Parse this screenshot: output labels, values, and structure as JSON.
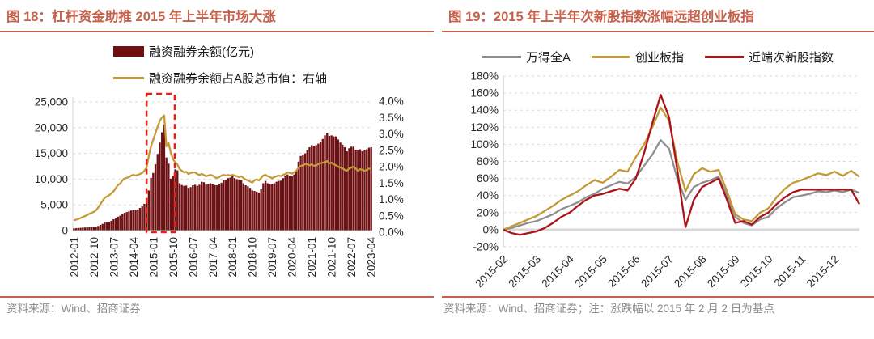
{
  "colors": {
    "accent_title_and_rules": "#C5604A",
    "bar_maroon": "#6E0F12",
    "gold_line": "#C39A37",
    "gray_line": "#8F8F8F",
    "red_line": "#AC1318",
    "highlight_box_red": "#EB1C14",
    "caption_gray": "#8C8C8C",
    "axis_text": "#262626",
    "gridline": "#D9D9D9"
  },
  "figures": [
    {
      "title": "图 18：杠杆资金助推 2015 年上半年市场大涨",
      "source": "资料来源：Wind、招商证券",
      "legend": [
        {
          "label": "融资融券余额(亿元)",
          "color": "#6E0F12",
          "type": "bar"
        },
        {
          "label": "融资融券余额占A股总市值：右轴",
          "color": "#C39A37",
          "type": "line"
        }
      ],
      "chart_data": {
        "type": "bar",
        "subtype": "combo-bar-line-dual-axis",
        "x_start": "2012-01",
        "x_freq": "monthly",
        "x_tick_every_months": 9,
        "x_tick_labels": [
          "2012-01",
          "2012-10",
          "2013-07",
          "2014-04",
          "2015-01",
          "2015-10",
          "2016-07",
          "2017-04",
          "2018-01",
          "2018-10",
          "2019-07",
          "2020-04",
          "2021-01",
          "2021-10",
          "2022-07",
          "2023-04"
        ],
        "left_axis": {
          "min": 0,
          "max": 25000,
          "tick_labels": [
            "25,000",
            "20,000",
            "15,000",
            "10,000",
            "5,000",
            "0"
          ]
        },
        "right_axis": {
          "min": 0,
          "max": 4.0,
          "tick_labels": [
            "4.0%",
            "3.5%",
            "3.0%",
            "2.5%",
            "2.0%",
            "1.5%",
            "1.0%",
            "0.5%",
            "0.0%"
          ]
        },
        "bar_series": {
          "name": "融资融券余额(亿元)",
          "axis": "left",
          "values": [
            420,
            460,
            500,
            540,
            570,
            590,
            610,
            640,
            670,
            700,
            750,
            890,
            1100,
            1300,
            1550,
            1610,
            1700,
            1900,
            2200,
            2400,
            2700,
            2900,
            3200,
            3450,
            3600,
            3750,
            3900,
            3980,
            4000,
            4100,
            4400,
            4700,
            5200,
            5900,
            7800,
            10250,
            11200,
            12900,
            14900,
            17100,
            19100,
            20600,
            14200,
            13000,
            10100,
            10700,
            11900,
            11700,
            9200,
            8850,
            8700,
            8750,
            8300,
            8450,
            8800,
            8900,
            8700,
            8900,
            9500,
            9400,
            8950,
            9000,
            9200,
            9100,
            8850,
            8800,
            9000,
            9300,
            9800,
            9900,
            10200,
            10300,
            10600,
            10200,
            10000,
            9850,
            9800,
            9200,
            8800,
            8600,
            8300,
            7800,
            7700,
            7550,
            7400,
            8050,
            9200,
            9650,
            9200,
            9100,
            9100,
            9200,
            9500,
            9650,
            9700,
            10200,
            10700,
            10900,
            10650,
            10600,
            10900,
            11600,
            13400,
            14500,
            14700,
            15000,
            15600,
            16200,
            16600,
            16500,
            16600,
            16900,
            17300,
            17800,
            18500,
            19000,
            18400,
            18500,
            18300,
            18300,
            17700,
            17100,
            16700,
            16200,
            15400,
            16000,
            16300,
            16300,
            15700,
            15600,
            15800,
            15400,
            15600,
            15800,
            16100,
            16200
          ]
        },
        "line_series": {
          "name": "融资融券余额占A股总市值",
          "axis": "right",
          "unit": "%",
          "values": [
            0.32,
            0.34,
            0.36,
            0.39,
            0.42,
            0.45,
            0.48,
            0.52,
            0.55,
            0.58,
            0.63,
            0.72,
            0.82,
            0.92,
            1.02,
            1.06,
            1.1,
            1.16,
            1.22,
            1.32,
            1.42,
            1.46,
            1.56,
            1.62,
            1.64,
            1.66,
            1.71,
            1.73,
            1.71,
            1.73,
            1.76,
            1.79,
            1.86,
            1.96,
            2.32,
            2.62,
            2.82,
            3.02,
            3.22,
            3.42,
            3.52,
            3.58,
            2.62,
            2.72,
            2.42,
            2.22,
            2.12,
            2.06,
            1.92,
            1.86,
            1.81,
            1.83,
            1.76,
            1.79,
            1.81,
            1.81,
            1.76,
            1.73,
            1.76,
            1.73,
            1.69,
            1.71,
            1.73,
            1.71,
            1.66,
            1.63,
            1.66,
            1.71,
            1.73,
            1.71,
            1.73,
            1.71,
            1.73,
            1.71,
            1.69,
            1.66,
            1.69,
            1.63,
            1.59,
            1.56,
            1.53,
            1.49,
            1.56,
            1.59,
            1.56,
            1.63,
            1.71,
            1.73,
            1.69,
            1.66,
            1.63,
            1.66,
            1.69,
            1.71,
            1.69,
            1.73,
            1.76,
            1.81,
            1.79,
            1.77,
            1.81,
            1.86,
            1.96,
            2.01,
            2.03,
            2.06,
            2.06,
            2.03,
            2.06,
            2.01,
            2.03,
            2.06,
            2.09,
            2.11,
            2.13,
            2.16,
            2.09,
            2.11,
            2.06,
            2.03,
            1.99,
            1.96,
            1.93,
            1.89,
            1.86,
            1.93,
            1.96,
            1.99,
            1.93,
            1.86,
            1.91,
            1.89,
            1.86,
            1.89,
            1.93,
            1.91
          ]
        },
        "highlight_box": {
          "style": "red-dashed",
          "from_month_index": 33.5,
          "to_month_index": 46.3
        }
      }
    },
    {
      "title": "图 19：2015 年上半年次新股指数涨幅远超创业板指",
      "source": "资料来源：Wind、招商证券；注：涨跌幅以 2015 年 2 月 2 日为基点",
      "legend": [
        {
          "label": "万得全A",
          "color": "#8F8F8F",
          "type": "line"
        },
        {
          "label": "创业板指",
          "color": "#C39A37",
          "type": "line"
        },
        {
          "label": "近端次新股指数",
          "color": "#AC1318",
          "type": "line"
        }
      ],
      "chart_data": {
        "type": "line",
        "unit": "%",
        "x_tick_labels": [
          "2015-02",
          "2015-03",
          "2015-04",
          "2015-05",
          "2015-06",
          "2015-07",
          "2015-08",
          "2015-09",
          "2015-10",
          "2015-11",
          "2015-12"
        ],
        "points_per_month": 4,
        "ylim": [
          -20,
          180
        ],
        "y_tick_labels": [
          "180%",
          "160%",
          "140%",
          "120%",
          "100%",
          "80%",
          "60%",
          "40%",
          "20%",
          "0%",
          "-20%"
        ],
        "series": [
          {
            "name": "万得全A",
            "color": "#8F8F8F",
            "values": [
              0,
              2,
              5,
              8,
              10,
              14,
              18,
              24,
              28,
              32,
              38,
              42,
              48,
              52,
              56,
              54,
              62,
              75,
              88,
              105,
              95,
              60,
              35,
              50,
              55,
              58,
              62,
              40,
              15,
              8,
              5,
              12,
              15,
              25,
              32,
              38,
              40,
              42,
              45,
              44,
              46,
              44,
              47,
              43
            ]
          },
          {
            "name": "创业板指",
            "color": "#C39A37",
            "values": [
              0,
              4,
              8,
              12,
              16,
              22,
              28,
              35,
              40,
              45,
              52,
              58,
              55,
              62,
              70,
              68,
              85,
              100,
              120,
              143,
              128,
              80,
              45,
              65,
              72,
              68,
              70,
              45,
              18,
              12,
              10,
              20,
              25,
              38,
              48,
              55,
              58,
              62,
              66,
              64,
              68,
              63,
              69,
              62
            ]
          },
          {
            "name": "近端次新股指数",
            "color": "#AC1318",
            "values": [
              0,
              -4,
              -6,
              -4,
              -2,
              2,
              8,
              15,
              20,
              28,
              35,
              40,
              42,
              45,
              48,
              46,
              60,
              90,
              125,
              158,
              132,
              70,
              3,
              35,
              50,
              55,
              60,
              35,
              8,
              10,
              6,
              15,
              20,
              30,
              38,
              44,
              47,
              47,
              47,
              47,
              47,
              47,
              47,
              30
            ]
          }
        ]
      }
    }
  ]
}
